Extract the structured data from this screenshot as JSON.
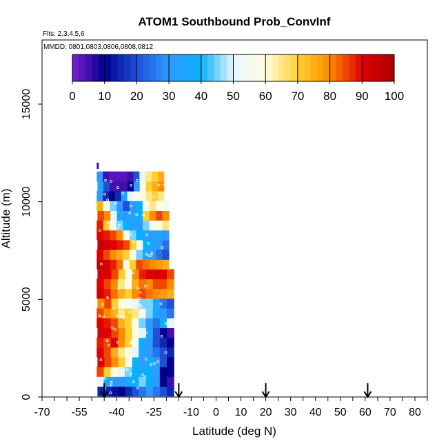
{
  "chart_data": {
    "type": "heatmap",
    "title": "ATOM1 Southbound Prob_ConvInf",
    "subtitle": "Flts: 2,3,4,5,6",
    "annotation": "MMDD: 0801,0803,0806,0808,0812",
    "xlabel": "Latitude (deg N)",
    "ylabel": "Altitude (m)",
    "xlim": [
      -70,
      85
    ],
    "ylim": [
      0,
      17500
    ],
    "x_ticks": [
      -70,
      -55,
      -40,
      -25,
      -10,
      0,
      10,
      20,
      30,
      40,
      50,
      60,
      70,
      80
    ],
    "y_ticks": [
      0,
      5000,
      10000,
      15000
    ],
    "colorbar": {
      "ticks": [
        0,
        10,
        20,
        30,
        40,
        50,
        60,
        70,
        80,
        90,
        100
      ],
      "colors": [
        "#7b1fd0",
        "#00008b",
        "#1e4fd6",
        "#2f9aff",
        "#0ab0ff",
        "#e6f6ff",
        "#fffde0",
        "#ffd030",
        "#ff8c00",
        "#e00000",
        "#a80000"
      ]
    },
    "flight_markers_lat": [
      -45,
      -15,
      20,
      61
    ],
    "profile": {
      "lat_range": [
        -48,
        -17
      ],
      "alt_range": [
        0,
        12000
      ],
      "rows": [
        {
          "alt": 300,
          "vals": [
            15,
            15,
            12,
            10,
            15,
            20,
            25,
            30,
            25,
            20,
            15
          ]
        },
        {
          "alt": 800,
          "vals": [
            50,
            35,
            30,
            30,
            35,
            40,
            45,
            40,
            30,
            10,
            5
          ]
        },
        {
          "alt": 1300,
          "vals": [
            85,
            70,
            60,
            50,
            45,
            40,
            35,
            40,
            30,
            10,
            10
          ]
        },
        {
          "alt": 1800,
          "vals": [
            90,
            85,
            80,
            70,
            60,
            40,
            30,
            40,
            30,
            20,
            10
          ]
        },
        {
          "alt": 2300,
          "vals": [
            90,
            85,
            75,
            65,
            60,
            50,
            35,
            30,
            25,
            20,
            15
          ]
        },
        {
          "alt": 2800,
          "vals": [
            88,
            85,
            90,
            80,
            70,
            55,
            40,
            30,
            20,
            15,
            10
          ]
        },
        {
          "alt": 3300,
          "vals": [
            92,
            90,
            85,
            80,
            70,
            60,
            50,
            35,
            20,
            10,
            5
          ]
        },
        {
          "alt": 3800,
          "vals": [
            90,
            88,
            85,
            75,
            70,
            60,
            45,
            30,
            25,
            40,
            50
          ]
        },
        {
          "alt": 4300,
          "vals": [
            85,
            80,
            75,
            65,
            70,
            65,
            55,
            45,
            35,
            30,
            25
          ]
        },
        {
          "alt": 4800,
          "vals": [
            80,
            85,
            70,
            60,
            55,
            50,
            45,
            45,
            35,
            25,
            20
          ]
        },
        {
          "alt": 5300,
          "vals": [
            92,
            88,
            82,
            75,
            70,
            80,
            85,
            82,
            80,
            78,
            75
          ]
        },
        {
          "alt": 5800,
          "vals": [
            90,
            85,
            80,
            65,
            60,
            75,
            82,
            80,
            85,
            85,
            80
          ]
        },
        {
          "alt": 6300,
          "vals": [
            92,
            90,
            85,
            70,
            55,
            80,
            88,
            90,
            92,
            90,
            85
          ]
        },
        {
          "alt": 6800,
          "vals": [
            95,
            92,
            88,
            82,
            60,
            70,
            85,
            82,
            80,
            78,
            75
          ]
        },
        {
          "alt": 7300,
          "vals": [
            90,
            85,
            80,
            75,
            70,
            55,
            45,
            35,
            30,
            25,
            20
          ]
        },
        {
          "alt": 7800,
          "vals": [
            95,
            92,
            90,
            88,
            85,
            70,
            55,
            40,
            35,
            30,
            25
          ]
        },
        {
          "alt": 8300,
          "vals": [
            90,
            88,
            85,
            80,
            60,
            45,
            40,
            35,
            30,
            35,
            30
          ]
        },
        {
          "alt": 8800,
          "vals": [
            88,
            70,
            55,
            45,
            40,
            35,
            30,
            45,
            55,
            60,
            65
          ]
        },
        {
          "alt": 9300,
          "vals": [
            85,
            80,
            50,
            35,
            30,
            35,
            40,
            70,
            80,
            85,
            80
          ]
        },
        {
          "alt": 9800,
          "vals": [
            75,
            60,
            45,
            30,
            20,
            30,
            40,
            55,
            65,
            60,
            55
          ]
        },
        {
          "alt": 10300,
          "vals": [
            30,
            15,
            10,
            15,
            35,
            50,
            55,
            60,
            65,
            70,
            65
          ]
        },
        {
          "alt": 10800,
          "vals": [
            35,
            20,
            5,
            5,
            5,
            10,
            30,
            60,
            70,
            75,
            80
          ]
        },
        {
          "alt": 11300,
          "vals": [
            30,
            5,
            3,
            3,
            3,
            5,
            20,
            50,
            65,
            70,
            75
          ]
        }
      ]
    }
  }
}
